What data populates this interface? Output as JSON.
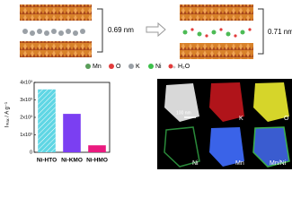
{
  "structure": {
    "left_spacing": "0.69 nm",
    "right_spacing": "0.71 nm"
  },
  "legend": [
    "Mn",
    "O",
    "K",
    "Ni",
    "H₂O"
  ],
  "microscopy": {
    "scale_bar": "100 nm",
    "panels": [
      "K",
      "O",
      "Ni",
      "Mn",
      "Mn/Ni"
    ]
  },
  "chart_data": {
    "type": "bar",
    "ylabel": "Iₘₐₓ / A g⁻¹",
    "categories": [
      "Ni-HTO",
      "Ni-KMO",
      "Ni-HMO"
    ],
    "values": [
      3600,
      2200,
      400
    ],
    "colors": [
      "#5fd6e4",
      "#7b3ff2",
      "#ea1a7f"
    ],
    "hatch": [
      true,
      false,
      false
    ],
    "ylim": [
      0,
      4000
    ],
    "yticks": [
      0,
      {
        "value": 1000,
        "label": "1x10³"
      },
      {
        "value": 2000,
        "label": "2x10³"
      },
      {
        "value": 3000,
        "label": "3x10³"
      },
      {
        "value": 4000,
        "label": "4x10³"
      }
    ]
  }
}
